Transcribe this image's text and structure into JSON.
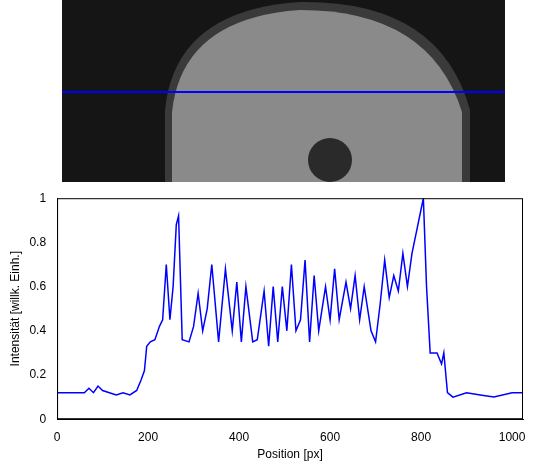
{
  "chart_data": {
    "type": "line",
    "x_label": "Position [px]",
    "y_label": "Intensität [willk. Einh.]",
    "color": "#0000ff",
    "grid": false,
    "xlim": [
      0,
      1024
    ],
    "xticks": [
      0,
      200,
      400,
      600,
      800,
      1000
    ],
    "ylim": [
      0,
      1
    ],
    "yticks": [
      0,
      0.2,
      0.4,
      0.6,
      0.8,
      1
    ],
    "x": [
      0,
      30,
      60,
      70,
      80,
      90,
      100,
      115,
      130,
      145,
      160,
      175,
      185,
      192,
      197,
      205,
      215,
      225,
      232,
      240,
      248,
      255,
      262,
      267,
      275,
      290,
      300,
      310,
      320,
      330,
      340,
      355,
      370,
      385,
      395,
      405,
      415,
      430,
      440,
      455,
      465,
      475,
      485,
      495,
      505,
      515,
      525,
      535,
      545,
      555,
      565,
      575,
      590,
      600,
      610,
      620,
      635,
      645,
      655,
      665,
      675,
      690,
      700,
      710,
      720,
      730,
      740,
      750,
      760,
      770,
      780,
      790,
      800,
      805,
      812,
      820,
      835,
      845,
      850,
      858,
      870,
      900,
      930,
      960,
      1000,
      1024
    ],
    "values": [
      0.12,
      0.12,
      0.12,
      0.14,
      0.12,
      0.15,
      0.13,
      0.12,
      0.11,
      0.12,
      0.11,
      0.13,
      0.18,
      0.22,
      0.33,
      0.35,
      0.36,
      0.42,
      0.45,
      0.7,
      0.45,
      0.6,
      0.88,
      0.92,
      0.36,
      0.35,
      0.42,
      0.57,
      0.4,
      0.5,
      0.7,
      0.35,
      0.68,
      0.4,
      0.62,
      0.35,
      0.6,
      0.35,
      0.36,
      0.58,
      0.33,
      0.6,
      0.35,
      0.6,
      0.4,
      0.7,
      0.4,
      0.45,
      0.72,
      0.35,
      0.65,
      0.4,
      0.6,
      0.45,
      0.68,
      0.45,
      0.62,
      0.5,
      0.65,
      0.45,
      0.6,
      0.4,
      0.35,
      0.52,
      0.72,
      0.55,
      0.65,
      0.58,
      0.75,
      0.6,
      0.75,
      0.85,
      0.95,
      1.0,
      0.6,
      0.3,
      0.3,
      0.25,
      0.3,
      0.12,
      0.1,
      0.12,
      0.11,
      0.1,
      0.12,
      0.12
    ]
  }
}
